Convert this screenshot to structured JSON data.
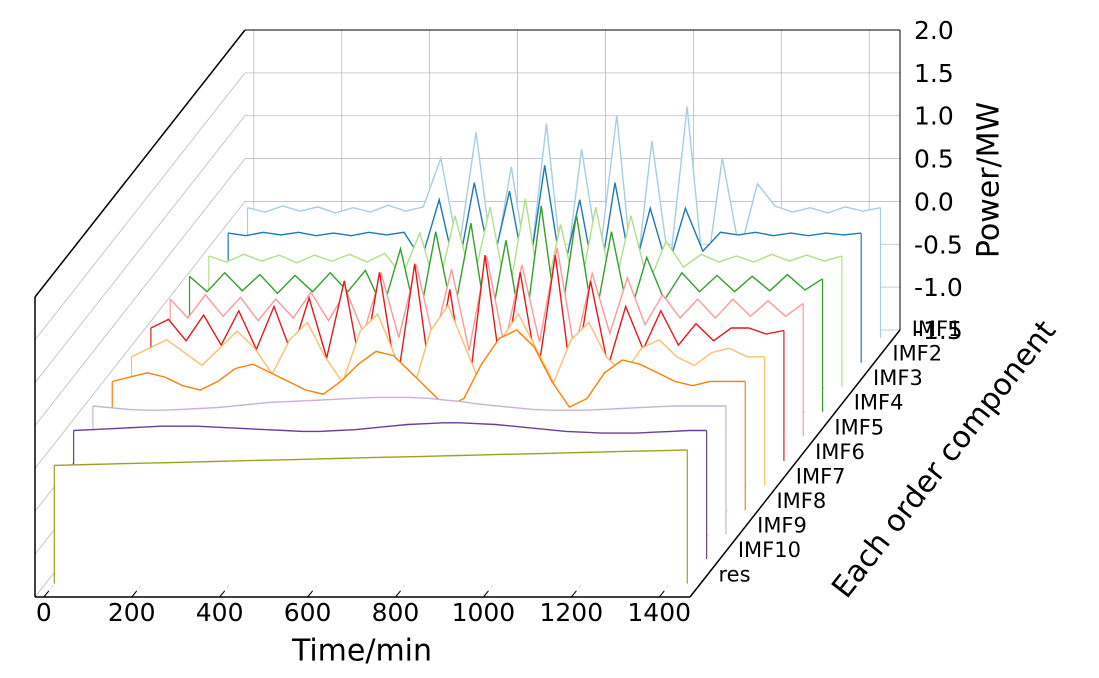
{
  "chart_data": {
    "type": "waterfall3d",
    "xlabel": "Time/min",
    "ylabel": "Power/MW",
    "zlabel": "Each order component",
    "x": [
      0,
      40,
      80,
      120,
      160,
      200,
      240,
      280,
      320,
      360,
      400,
      440,
      480,
      520,
      560,
      600,
      640,
      680,
      720,
      760,
      800,
      840,
      880,
      920,
      960,
      1000,
      1040,
      1080,
      1120,
      1160,
      1200,
      1240,
      1280,
      1320,
      1360,
      1400,
      1440
    ],
    "xlim": [
      -20,
      1470
    ],
    "xticks": [
      0,
      200,
      400,
      600,
      800,
      1000,
      1200,
      1400
    ],
    "ylim": [
      -1.5,
      2.0
    ],
    "yticks": [
      -1.5,
      {
        "value": -1.0,
        "label": "-1.0"
      },
      -0.5,
      {
        "value": 0,
        "label": "0.0"
      },
      0.5,
      {
        "value": 1.0,
        "label": "1.0"
      },
      1.5,
      {
        "value": 2.0,
        "label": "2.0"
      }
    ],
    "grid": true,
    "series": [
      {
        "name": "IMF1",
        "color": "#a6cee3",
        "values": [
          0.02,
          -0.03,
          0.04,
          -0.02,
          0.03,
          -0.04,
          0.02,
          -0.03,
          0.05,
          -0.02,
          0.03,
          0.6,
          -0.5,
          0.9,
          -0.7,
          0.5,
          -0.8,
          1.0,
          -0.9,
          0.7,
          -0.6,
          1.1,
          -1.0,
          0.8,
          -0.7,
          1.2,
          -0.9,
          0.6,
          -0.5,
          0.3,
          0.04,
          -0.03,
          0.02,
          -0.04,
          0.03,
          -0.02,
          0.02
        ]
      },
      {
        "name": "IMF2",
        "color": "#1f78b4",
        "values": [
          0.01,
          -0.02,
          0.02,
          -0.01,
          0.02,
          -0.02,
          0.01,
          -0.02,
          0.02,
          -0.01,
          0.02,
          -0.3,
          0.4,
          -0.5,
          0.6,
          -0.4,
          0.5,
          -0.6,
          0.8,
          -0.5,
          0.4,
          -0.7,
          0.6,
          -0.5,
          0.3,
          -0.4,
          0.3,
          -0.2,
          0.02,
          -0.01,
          0.02,
          -0.02,
          0.01,
          -0.02,
          0.01,
          -0.01,
          0.01
        ]
      },
      {
        "name": "IMF3",
        "color": "#b2df8a",
        "values": [
          0.03,
          -0.04,
          0.05,
          -0.03,
          0.04,
          -0.05,
          0.04,
          -0.03,
          0.05,
          -0.04,
          0.06,
          -0.2,
          0.3,
          -0.4,
          0.5,
          -0.3,
          0.6,
          -0.5,
          0.7,
          -0.6,
          0.4,
          -0.5,
          0.6,
          -0.4,
          0.5,
          -0.3,
          0.2,
          -0.1,
          0.05,
          -0.04,
          0.03,
          -0.04,
          0.05,
          -0.03,
          0.04,
          -0.03,
          0.03
        ]
      },
      {
        "name": "IMF4",
        "color": "#33a02c",
        "values": [
          0.08,
          -0.1,
          0.12,
          -0.09,
          0.1,
          -0.12,
          0.09,
          -0.1,
          0.12,
          -0.1,
          0.15,
          -0.3,
          0.4,
          -0.5,
          0.6,
          -0.4,
          0.7,
          -0.6,
          0.5,
          -0.7,
          0.9,
          -0.6,
          0.8,
          -0.5,
          0.6,
          -0.4,
          0.3,
          -0.2,
          0.12,
          -0.1,
          0.09,
          -0.1,
          0.08,
          -0.09,
          0.1,
          -0.08,
          0.05
        ]
      },
      {
        "name": "IMF5",
        "color": "#fb9a99",
        "values": [
          0.1,
          -0.12,
          0.15,
          -0.1,
          0.12,
          -0.15,
          0.1,
          -0.12,
          0.18,
          -0.15,
          0.2,
          -0.3,
          0.4,
          -0.35,
          0.5,
          -0.4,
          0.45,
          -0.5,
          0.6,
          -0.45,
          0.5,
          -0.4,
          0.7,
          -0.5,
          0.4,
          -0.3,
          0.35,
          -0.2,
          0.15,
          -0.12,
          0.1,
          -0.12,
          0.1,
          -0.1,
          0.08,
          -0.1,
          0.05
        ]
      },
      {
        "name": "IMF6",
        "color": "#e31a1c",
        "values": [
          0.05,
          0.15,
          -0.1,
          0.2,
          -0.15,
          0.25,
          -0.2,
          0.3,
          -0.25,
          0.4,
          -0.3,
          0.6,
          -0.5,
          0.7,
          -0.6,
          0.8,
          -0.7,
          0.5,
          -0.8,
          0.9,
          -0.6,
          0.7,
          -0.5,
          0.9,
          -0.7,
          0.6,
          -0.4,
          0.3,
          -0.2,
          0.25,
          -0.15,
          0.1,
          -0.1,
          0.05,
          0.05,
          -0.02,
          0.02
        ]
      },
      {
        "name": "IMF7",
        "color": "#fdbf6f",
        "values": [
          0,
          0.1,
          0.2,
          0.05,
          -0.1,
          0.1,
          0.3,
          0.1,
          -0.2,
          0.2,
          0.4,
          0,
          -0.3,
          0.3,
          0.5,
          0,
          -0.4,
          0.3,
          0.6,
          0.1,
          -0.4,
          0.2,
          0.5,
          0.1,
          -0.3,
          0.2,
          0.4,
          0,
          -0.2,
          0.1,
          0.2,
          0,
          -0.1,
          0.05,
          0.1,
          0,
          0
        ]
      },
      {
        "name": "IMF8",
        "color": "#ff7f00",
        "values": [
          0,
          0.05,
          0.1,
          0.05,
          -0.05,
          -0.1,
          0,
          0.15,
          0.2,
          0.1,
          0,
          -0.1,
          -0.15,
          0,
          0.2,
          0.35,
          0.3,
          0.1,
          -0.1,
          -0.3,
          -0.2,
          0.2,
          0.5,
          0.6,
          0.4,
          0,
          -0.3,
          -0.2,
          0.1,
          0.25,
          0.2,
          0.1,
          0,
          -0.05,
          0,
          0,
          0
        ]
      },
      {
        "name": "IMF9",
        "color": "#cab2d6",
        "values": [
          0,
          -0.02,
          -0.04,
          -0.05,
          -0.05,
          -0.04,
          -0.03,
          -0.02,
          0,
          0.02,
          0.04,
          0.05,
          0.06,
          0.07,
          0.08,
          0.09,
          0.1,
          0.1,
          0.1,
          0.09,
          0.07,
          0.05,
          0.02,
          0,
          -0.02,
          -0.04,
          -0.05,
          -0.05,
          -0.05,
          -0.04,
          -0.03,
          -0.02,
          -0.01,
          0,
          0,
          0,
          0
        ]
      },
      {
        "name": "IMF10",
        "color": "#6a3d9a",
        "values": [
          0,
          0.01,
          0.02,
          0.03,
          0.04,
          0.05,
          0.05,
          0.05,
          0.04,
          0.03,
          0.02,
          0.01,
          0,
          -0.01,
          -0.01,
          0,
          0.01,
          0.03,
          0.05,
          0.07,
          0.08,
          0.09,
          0.09,
          0.08,
          0.07,
          0.05,
          0.03,
          0.01,
          -0.01,
          -0.02,
          -0.03,
          -0.03,
          -0.03,
          -0.02,
          -0.01,
          0,
          0
        ]
      },
      {
        "name": "res",
        "color": "#a0a020",
        "values": [
          -0.12,
          -0.115,
          -0.11,
          -0.105,
          -0.1,
          -0.095,
          -0.09,
          -0.085,
          -0.08,
          -0.075,
          -0.07,
          -0.065,
          -0.06,
          -0.055,
          -0.05,
          -0.045,
          -0.04,
          -0.035,
          -0.03,
          -0.025,
          -0.02,
          -0.015,
          -0.01,
          -0.005,
          0,
          0.005,
          0.01,
          0.015,
          0.02,
          0.025,
          0.03,
          0.035,
          0.04,
          0.045,
          0.05,
          0.055,
          0.06
        ]
      }
    ]
  }
}
